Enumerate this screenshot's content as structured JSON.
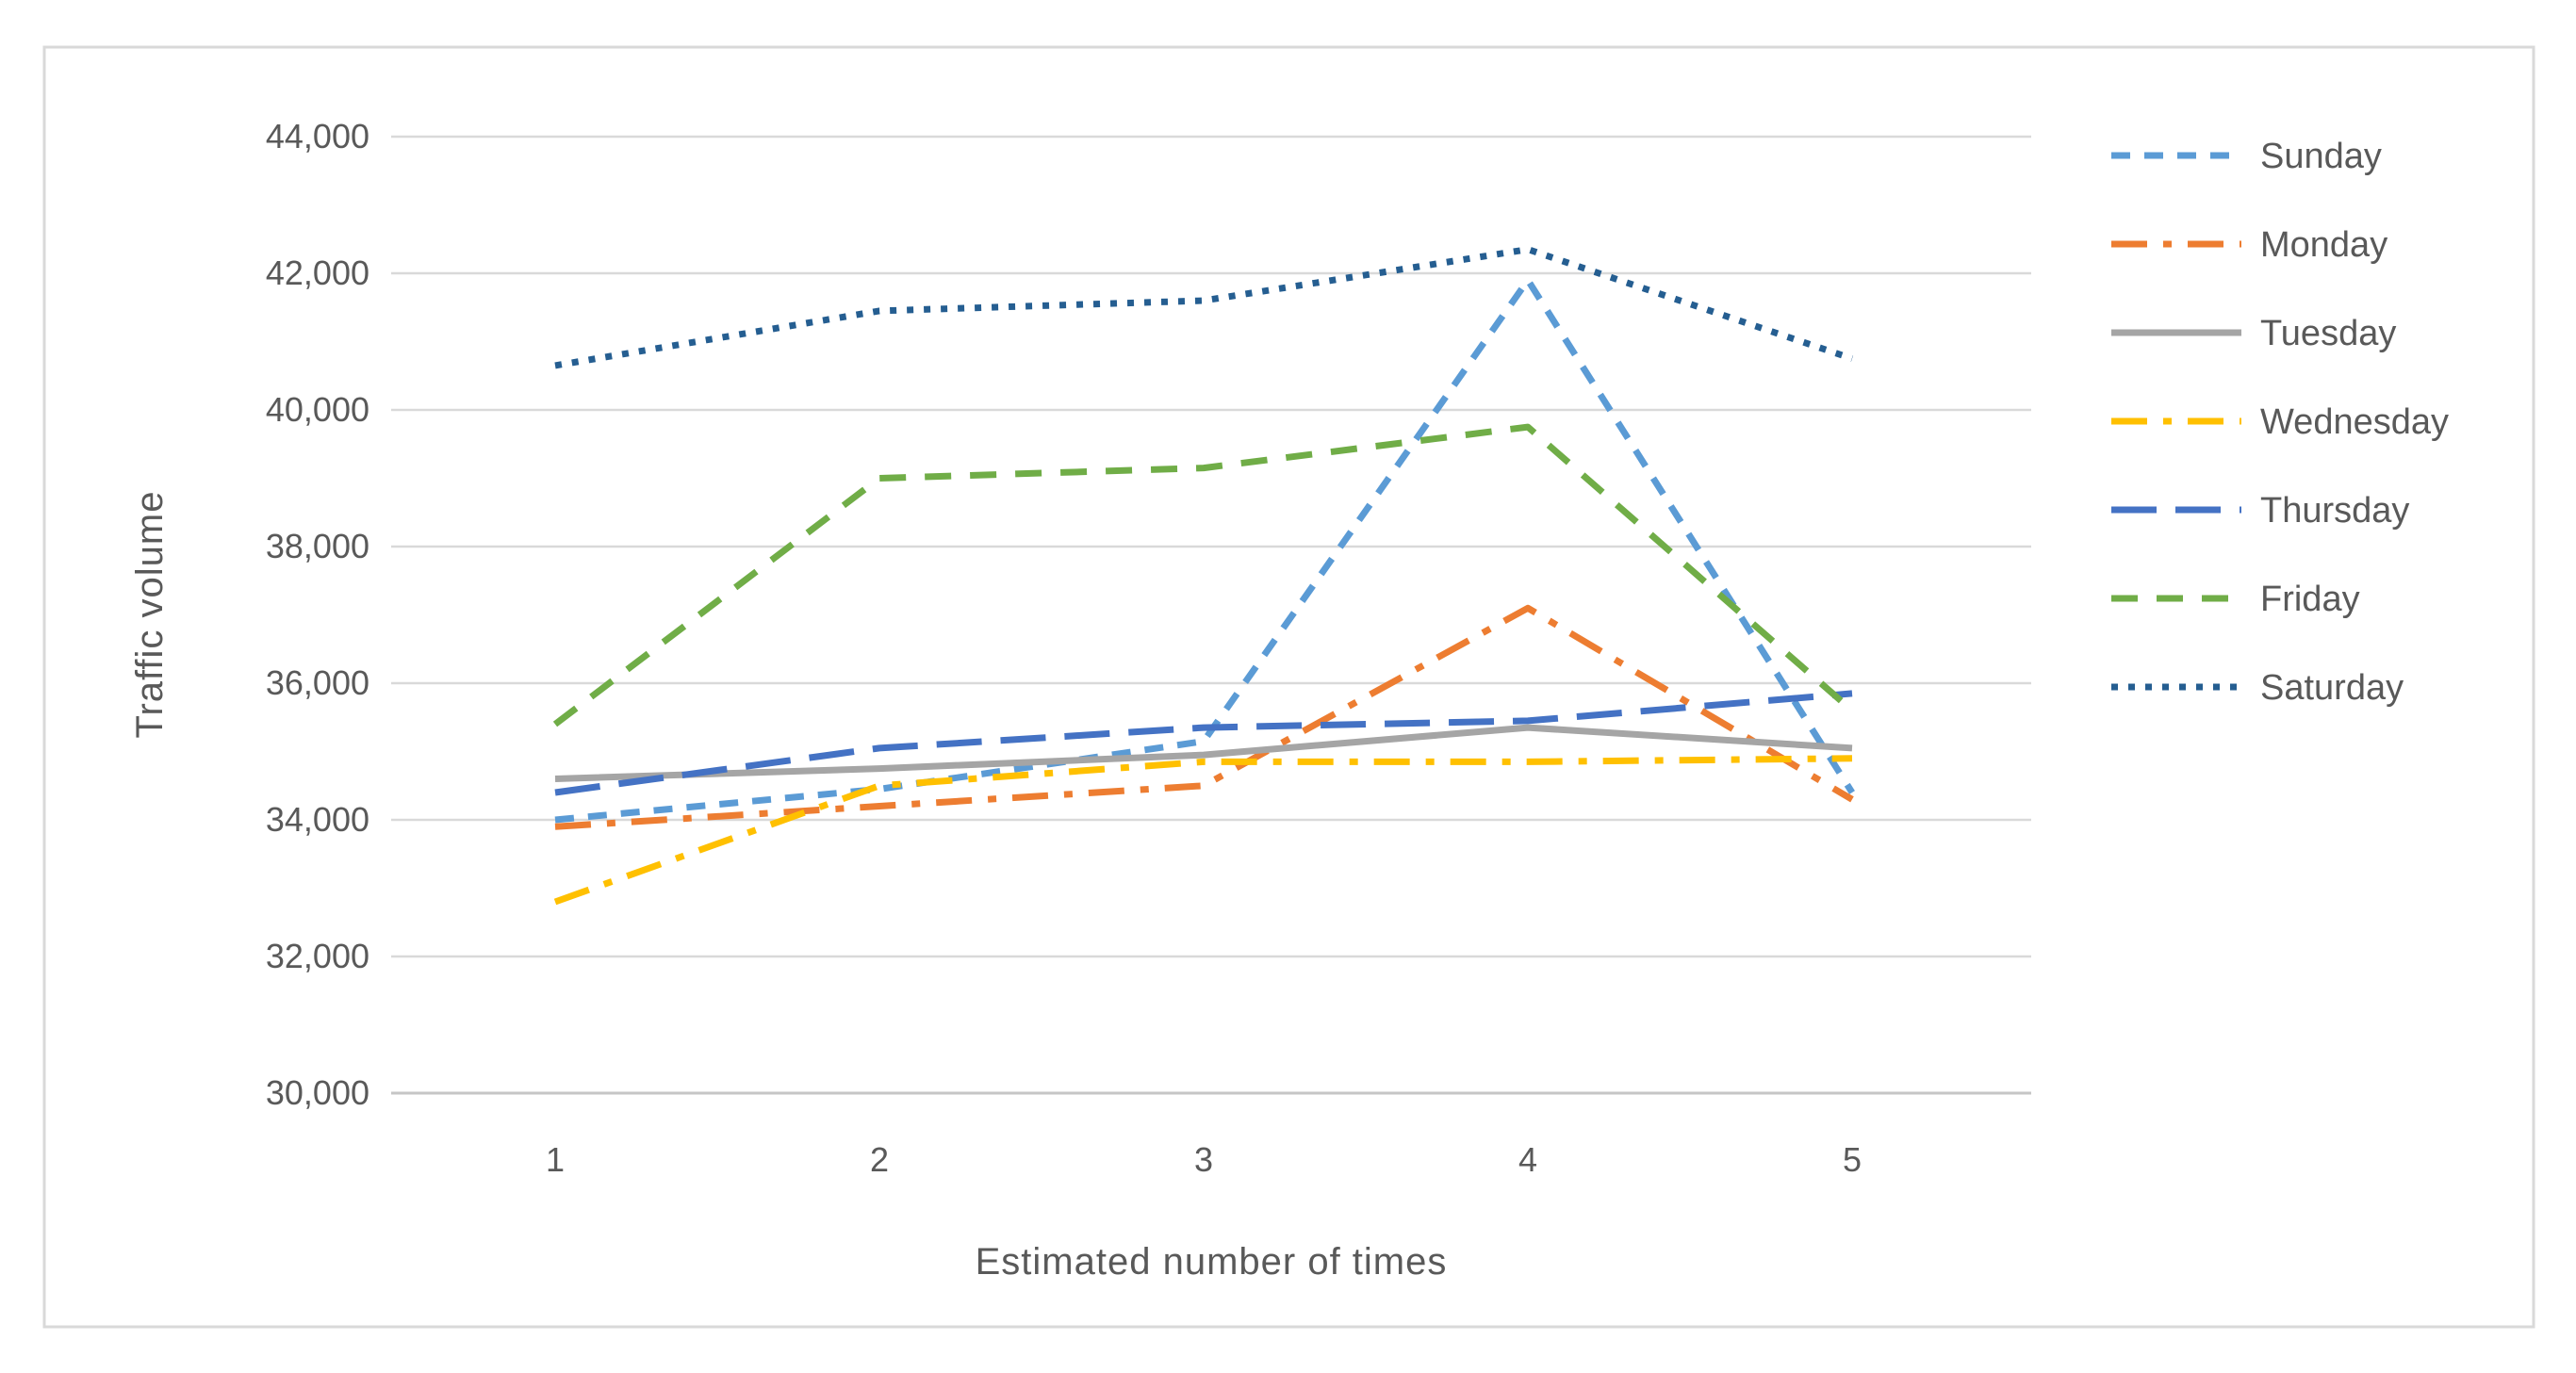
{
  "chart_data": {
    "type": "line",
    "title": "",
    "xlabel": "Estimated number of times",
    "ylabel": "Traffic volume",
    "categories": [
      "1",
      "2",
      "3",
      "4",
      "5"
    ],
    "series": [
      {
        "name": "Sunday",
        "color": "#5B9BD5",
        "line_style": "dash-short",
        "values": [
          34000,
          34450,
          35150,
          41900,
          34400
        ]
      },
      {
        "name": "Monday",
        "color": "#ED7D31",
        "line_style": "dash-dot",
        "values": [
          33900,
          34200,
          34500,
          37100,
          34300
        ]
      },
      {
        "name": "Tuesday",
        "color": "#A5A5A5",
        "line_style": "solid",
        "values": [
          34600,
          34750,
          34950,
          35350,
          35050
        ]
      },
      {
        "name": "Wednesday",
        "color": "#FFC000",
        "line_style": "dash-dot",
        "values": [
          32800,
          34500,
          34850,
          34850,
          34900
        ]
      },
      {
        "name": "Thursday",
        "color": "#4472C4",
        "line_style": "long-dash",
        "values": [
          34400,
          35050,
          35350,
          35450,
          35850
        ]
      },
      {
        "name": "Friday",
        "color": "#70AD47",
        "line_style": "dash-med",
        "values": [
          35400,
          39000,
          39150,
          39750,
          35600
        ]
      },
      {
        "name": "Saturday",
        "color": "#255E91",
        "line_style": "dot",
        "values": [
          40650,
          41450,
          41600,
          42350,
          40750
        ]
      }
    ],
    "y_axis": {
      "min": 30000,
      "max": 44000,
      "step": 2000,
      "tick_labels": [
        "44,000",
        "42,000",
        "40,000",
        "38,000",
        "36,000",
        "34,000",
        "32,000",
        "30,000"
      ],
      "tick_values": [
        44000,
        42000,
        40000,
        38000,
        36000,
        34000,
        32000,
        30000
      ]
    },
    "x_axis": {
      "tick_labels": [
        "1",
        "2",
        "3",
        "4",
        "5"
      ]
    },
    "grid": true,
    "legend_position": "right",
    "colors": {
      "grid": "#D9D9D9",
      "axis_line": "#C6C6C6",
      "text": "#595959",
      "border": "#D9D9D9",
      "background": "#FFFFFF"
    }
  }
}
